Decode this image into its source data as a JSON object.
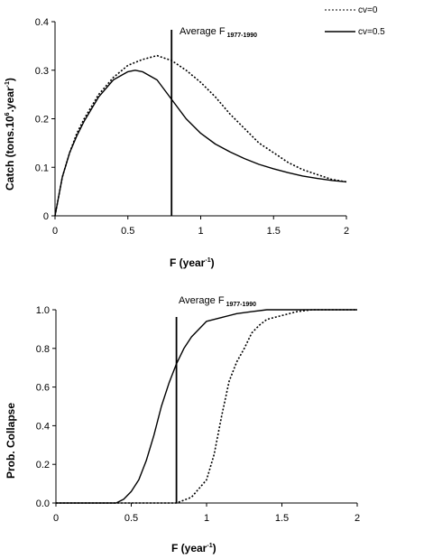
{
  "chart_data": [
    {
      "type": "line",
      "xlabel": "F (year",
      "xlabel_sup": "-1",
      "xlabel_end": ")",
      "ylabel_pre": "Catch (tons.10",
      "ylabel_sup": "6",
      "ylabel_mid": ".year",
      "ylabel_sup2": "-1",
      "ylabel_end": ")",
      "xlim": [
        0,
        2
      ],
      "ylim": [
        0,
        0.4
      ],
      "x_ticks": [
        "0",
        "0.5",
        "1",
        "1.5",
        "2"
      ],
      "y_ticks": [
        "0",
        "0.1",
        "0.2",
        "0.3",
        "0.4"
      ],
      "grid": false,
      "legend_position": "top-right",
      "annotation": {
        "text": "Average F",
        "subscript": "1977-1990",
        "x": 0.8
      },
      "series": [
        {
          "name": "cv=0",
          "style": "dotted",
          "x": [
            0,
            0.05,
            0.1,
            0.15,
            0.2,
            0.3,
            0.4,
            0.5,
            0.6,
            0.7,
            0.8,
            0.9,
            1.0,
            1.1,
            1.2,
            1.3,
            1.4,
            1.5,
            1.6,
            1.7,
            1.8,
            1.9,
            2.0
          ],
          "values": [
            0,
            0.08,
            0.13,
            0.17,
            0.2,
            0.25,
            0.285,
            0.31,
            0.322,
            0.33,
            0.32,
            0.3,
            0.275,
            0.245,
            0.21,
            0.18,
            0.15,
            0.13,
            0.11,
            0.095,
            0.085,
            0.075,
            0.07
          ]
        },
        {
          "name": "cv=0.5",
          "style": "solid",
          "x": [
            0,
            0.05,
            0.1,
            0.15,
            0.2,
            0.3,
            0.4,
            0.5,
            0.55,
            0.6,
            0.7,
            0.8,
            0.9,
            1.0,
            1.1,
            1.2,
            1.3,
            1.4,
            1.5,
            1.6,
            1.7,
            1.8,
            1.9,
            2.0
          ],
          "values": [
            0,
            0.08,
            0.13,
            0.165,
            0.195,
            0.245,
            0.28,
            0.297,
            0.3,
            0.297,
            0.28,
            0.24,
            0.2,
            0.17,
            0.148,
            0.132,
            0.118,
            0.106,
            0.097,
            0.089,
            0.082,
            0.077,
            0.073,
            0.07
          ]
        }
      ]
    },
    {
      "type": "line",
      "xlabel": "F (year",
      "xlabel_sup": "-1",
      "xlabel_end": ")",
      "ylabel": "Prob. Collapse",
      "xlim": [
        0,
        2
      ],
      "ylim": [
        0,
        1
      ],
      "x_ticks": [
        "0",
        "0.5",
        "1",
        "1.5",
        "2"
      ],
      "y_ticks": [
        "0.0",
        "0.2",
        "0.4",
        "0.6",
        "0.8",
        "1.0"
      ],
      "grid": false,
      "annotation": {
        "text": "Average F",
        "subscript": "1977-1990",
        "x": 0.8
      },
      "series": [
        {
          "name": "cv=0",
          "style": "dotted",
          "x": [
            0,
            0.8,
            0.9,
            1.0,
            1.05,
            1.1,
            1.15,
            1.2,
            1.25,
            1.3,
            1.35,
            1.4,
            1.5,
            1.6,
            1.7,
            1.8,
            2.0
          ],
          "values": [
            0,
            0,
            0.03,
            0.12,
            0.25,
            0.45,
            0.63,
            0.73,
            0.8,
            0.88,
            0.92,
            0.95,
            0.97,
            0.99,
            1.0,
            1.0,
            1.0
          ]
        },
        {
          "name": "cv=0.5",
          "style": "solid",
          "x": [
            0,
            0.4,
            0.45,
            0.5,
            0.55,
            0.6,
            0.65,
            0.7,
            0.75,
            0.8,
            0.85,
            0.9,
            1.0,
            1.1,
            1.2,
            1.3,
            1.4,
            1.6,
            2.0
          ],
          "values": [
            0,
            0,
            0.02,
            0.06,
            0.12,
            0.22,
            0.35,
            0.5,
            0.62,
            0.72,
            0.8,
            0.86,
            0.94,
            0.96,
            0.98,
            0.99,
            1.0,
            1.0,
            1.0
          ]
        }
      ]
    }
  ]
}
